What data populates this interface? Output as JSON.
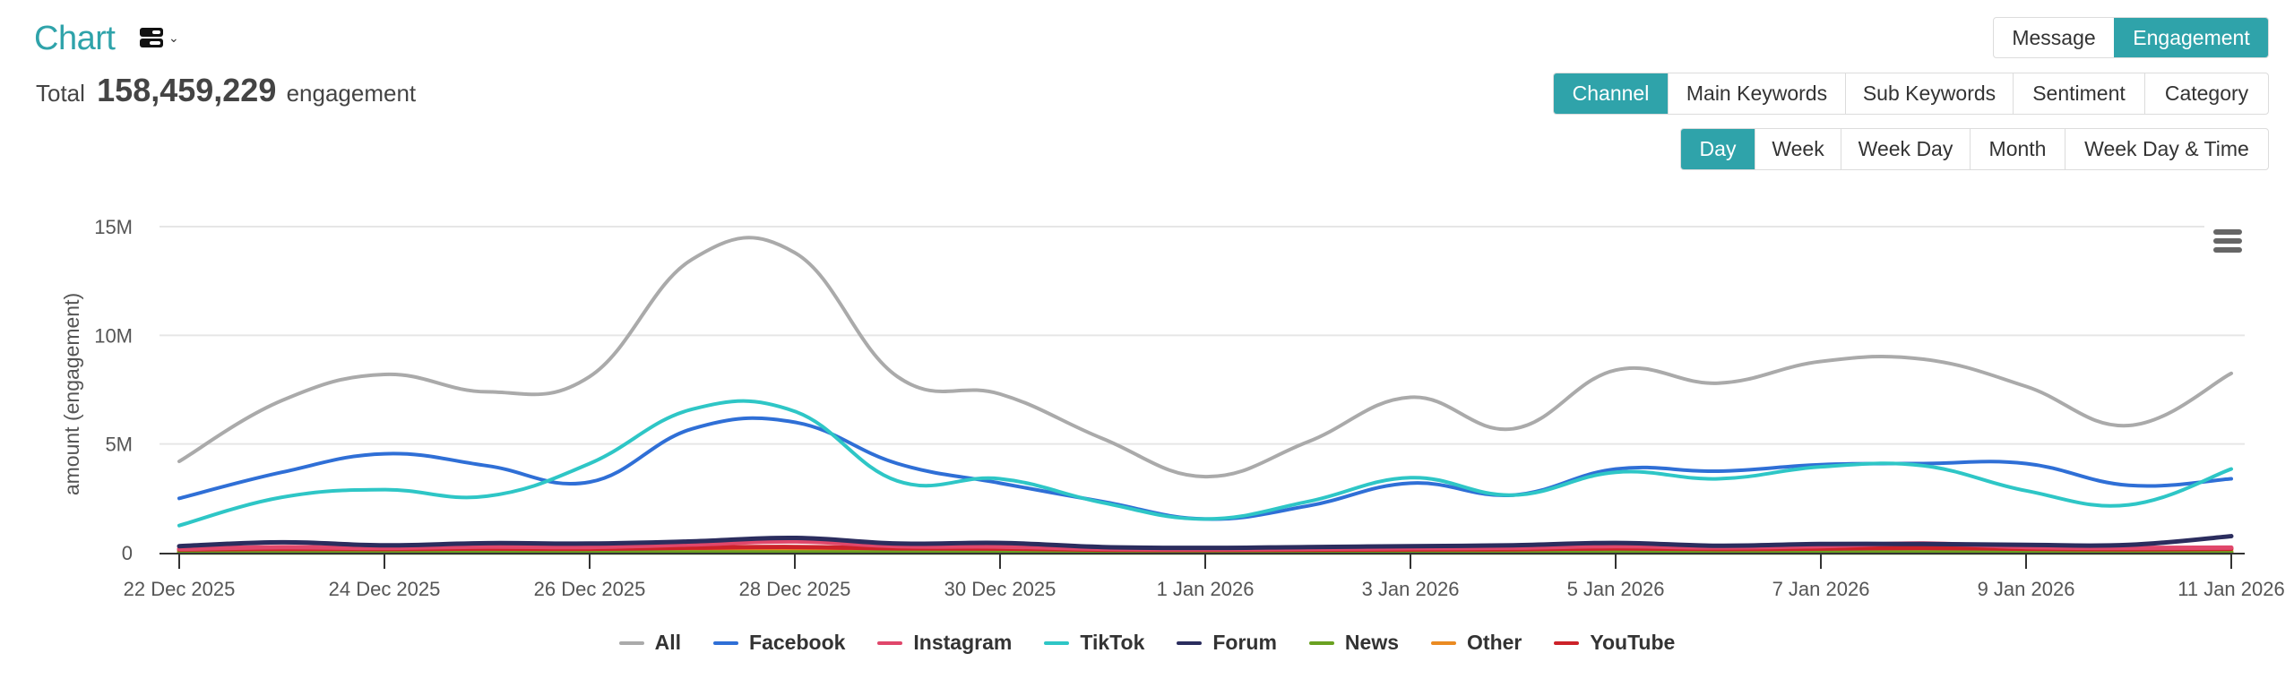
{
  "header": {
    "title": "Chart",
    "view_toggle_icon": "layout-toggle-icon",
    "total_prefix": "Total",
    "total_value": "158,459,229",
    "total_suffix": "engagement"
  },
  "metric_tabs": [
    {
      "label": "Message",
      "active": false
    },
    {
      "label": "Engagement",
      "active": true
    }
  ],
  "dimension_tabs": [
    {
      "label": "Channel",
      "active": true
    },
    {
      "label": "Main Keywords",
      "active": false
    },
    {
      "label": "Sub Keywords",
      "active": false
    },
    {
      "label": "Sentiment",
      "active": false
    },
    {
      "label": "Category",
      "active": false
    }
  ],
  "time_tabs": [
    {
      "label": "Day",
      "active": true
    },
    {
      "label": "Week",
      "active": false
    },
    {
      "label": "Week Day",
      "active": false
    },
    {
      "label": "Month",
      "active": false
    },
    {
      "label": "Week Day & Time",
      "active": false
    }
  ],
  "colors": {
    "accent": "#2fa3aa",
    "grid": "#e6e6e6",
    "axis": "#333333"
  },
  "chart_menu_icon": "hamburger-menu-icon",
  "chart_data": {
    "type": "line",
    "title": "",
    "xlabel": "",
    "ylabel": "amount (engagement)",
    "ylim": [
      0,
      15000000
    ],
    "yticks": [
      0,
      5000000,
      10000000,
      15000000
    ],
    "ytick_labels": [
      "0",
      "5M",
      "10M",
      "15M"
    ],
    "grid": true,
    "legend_position": "bottom-center",
    "x": [
      "22 Dec 2025",
      "23 Dec 2025",
      "24 Dec 2025",
      "25 Dec 2025",
      "26 Dec 2025",
      "27 Dec 2025",
      "28 Dec 2025",
      "29 Dec 2025",
      "30 Dec 2025",
      "31 Dec 2025",
      "1 Jan 2026",
      "2 Jan 2026",
      "3 Jan 2026",
      "4 Jan 2026",
      "5 Jan 2026",
      "6 Jan 2026",
      "7 Jan 2026",
      "8 Jan 2026",
      "9 Jan 2026",
      "10 Jan 2026",
      "11 Jan 2026"
    ],
    "xtick_labels": [
      "22 Dec 2025",
      "24 Dec 2025",
      "26 Dec 2025",
      "28 Dec 2025",
      "30 Dec 2025",
      "1 Jan 2026",
      "3 Jan 2026",
      "5 Jan 2026",
      "7 Jan 2026",
      "9 Jan 2026",
      "11 Jan 2026"
    ],
    "series": [
      {
        "name": "All",
        "color": "#aaaaaa",
        "values": [
          4200000,
          7000000,
          8200000,
          7400000,
          8100000,
          13500000,
          13800000,
          8100000,
          7300000,
          5250000,
          3500000,
          5100000,
          7150000,
          5700000,
          8400000,
          7800000,
          8800000,
          8900000,
          7650000,
          5850000,
          8250000
        ]
      },
      {
        "name": "Facebook",
        "color": "#2f6fd6",
        "values": [
          2500000,
          3700000,
          4550000,
          4000000,
          3250000,
          5700000,
          6000000,
          4100000,
          3200000,
          2350000,
          1550000,
          2150000,
          3200000,
          2650000,
          3850000,
          3750000,
          4050000,
          4100000,
          4100000,
          3100000,
          3400000
        ]
      },
      {
        "name": "Instagram",
        "color": "#e0476b",
        "values": [
          180000,
          250000,
          220000,
          280000,
          260000,
          380000,
          520000,
          300000,
          280000,
          180000,
          160000,
          180000,
          210000,
          230000,
          300000,
          240000,
          300000,
          420000,
          260000,
          220000,
          230000
        ]
      },
      {
        "name": "TikTok",
        "color": "#2ec6c6",
        "values": [
          1250000,
          2550000,
          2900000,
          2600000,
          4100000,
          6600000,
          6500000,
          3300000,
          3400000,
          2300000,
          1550000,
          2350000,
          3450000,
          2650000,
          3700000,
          3400000,
          3950000,
          4000000,
          2850000,
          2200000,
          3850000
        ]
      },
      {
        "name": "Forum",
        "color": "#2b2d5e",
        "values": [
          300000,
          480000,
          340000,
          440000,
          420000,
          520000,
          680000,
          420000,
          450000,
          260000,
          220000,
          260000,
          300000,
          340000,
          450000,
          320000,
          400000,
          400000,
          360000,
          360000,
          760000
        ]
      },
      {
        "name": "News",
        "color": "#6aa121",
        "values": [
          10000,
          10000,
          10000,
          10000,
          10000,
          10000,
          10000,
          10000,
          10000,
          10000,
          10000,
          10000,
          10000,
          10000,
          10000,
          10000,
          10000,
          10000,
          10000,
          10000,
          10000
        ]
      },
      {
        "name": "Other",
        "color": "#ea8a22",
        "values": [
          60000,
          60000,
          60000,
          60000,
          60000,
          70000,
          80000,
          60000,
          60000,
          50000,
          50000,
          50000,
          50000,
          50000,
          60000,
          50000,
          60000,
          60000,
          50000,
          50000,
          60000
        ]
      },
      {
        "name": "YouTube",
        "color": "#cc2229",
        "values": [
          150000,
          180000,
          170000,
          190000,
          180000,
          230000,
          260000,
          200000,
          190000,
          140000,
          130000,
          140000,
          150000,
          160000,
          200000,
          170000,
          190000,
          220000,
          180000,
          160000,
          180000
        ]
      }
    ]
  }
}
